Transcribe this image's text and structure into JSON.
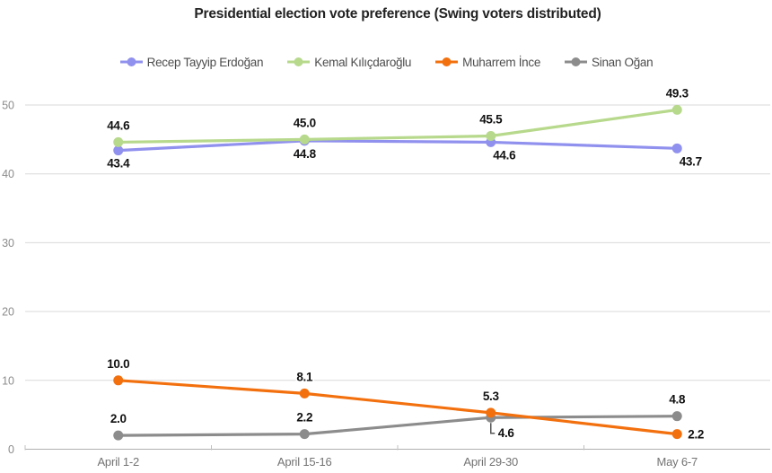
{
  "chart_data": {
    "type": "line",
    "title": "Presidential election vote preference (Swing voters distributed)",
    "categories": [
      "April 1-2",
      "April 15-16",
      "April 29-30",
      "May 6-7"
    ],
    "series": [
      {
        "name": "Recep Tayyip Erdoğan",
        "color": "#9090ee",
        "values": [
          43.4,
          44.8,
          44.6,
          43.7
        ],
        "label_placement": [
          "below",
          "below",
          "below-right",
          "below-right"
        ]
      },
      {
        "name": "Kemal Kılıçdaroğlu",
        "color": "#b7d98c",
        "values": [
          44.6,
          45.0,
          45.5,
          49.3
        ],
        "label_placement": [
          "above",
          "above",
          "above",
          "above"
        ]
      },
      {
        "name": "Muharrem İnce",
        "color": "#f3700e",
        "values": [
          10.0,
          8.1,
          5.3,
          2.2
        ],
        "label_placement": [
          "above",
          "above",
          "above",
          "right"
        ]
      },
      {
        "name": "Sinan Oğan",
        "color": "#8c8c8c",
        "values": [
          2.0,
          2.2,
          4.6,
          4.8
        ],
        "label_placement": [
          "above",
          "above",
          "callout",
          "above"
        ]
      }
    ],
    "ylim": [
      0,
      50
    ],
    "yticks": [
      0,
      10,
      20,
      30,
      40,
      50
    ],
    "grid": true,
    "legend_position": "top",
    "value_labels": true,
    "value_format_decimals": 1,
    "draw_order": [
      0,
      3,
      2,
      1
    ]
  },
  "colors": {
    "background": "#ffffff",
    "title_text": "#222222",
    "legend_text": "#4d4d4d",
    "grid_line": "#d9d9d9",
    "baseline": "#b0b0b0",
    "axis_tick": "#c0c0c0",
    "y_axis_text": "#8c8c8c",
    "x_axis_text": "#737373",
    "value_label_text": "#111111",
    "callout_connector": "#555555"
  }
}
